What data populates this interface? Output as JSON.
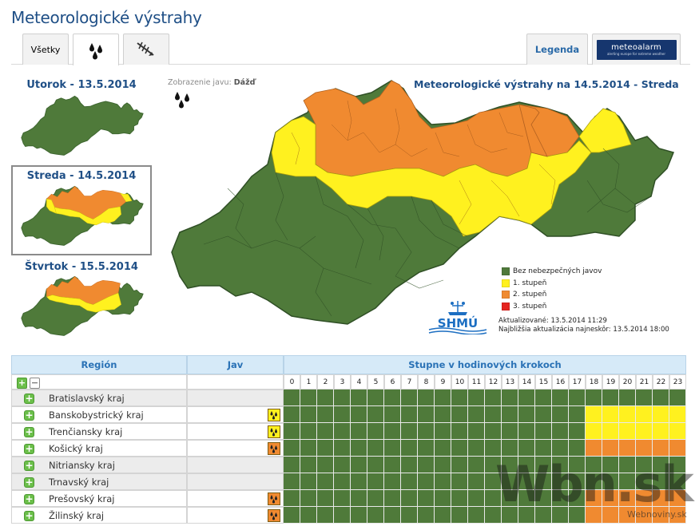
{
  "page_title": "Meteorologické výstrahy",
  "tabs": {
    "all_label": "Všetky",
    "rain_icon": "rain-drops-icon",
    "wind_icon": "wind-icon",
    "legend_label": "Legenda",
    "meteoalarm_name": "meteoalarm",
    "meteoalarm_tag": "alerting europe for extreme weather"
  },
  "days": [
    {
      "label": "Utorok - 13.5.2014"
    },
    {
      "label": "Streda - 14.5.2014"
    },
    {
      "label": "Štvrtok - 15.5.2014"
    }
  ],
  "phenomenon": {
    "prefix": "Zobrazenie javu:",
    "value": "Dážď"
  },
  "map_title": "Meteorologické výstrahy na 14.5.2014 - Streda",
  "legend": {
    "items": [
      {
        "label": "Bez nebezpečných javov",
        "color": "#4f7a3a"
      },
      {
        "label": "1. stupeň",
        "color": "#fff11f"
      },
      {
        "label": "2. stupeň",
        "color": "#f08a30"
      },
      {
        "label": "3. stupeň",
        "color": "#e52420"
      }
    ]
  },
  "updated": "Aktualizované: 13.5.2014 11:29",
  "next_update": "Najbližšia aktualizácia najneskôr: 13.5.2014 18:00",
  "logo_text": "SHMÚ",
  "table": {
    "col_region": "Región",
    "col_jav": "Jav",
    "col_steps": "Stupne v hodinových krokoch",
    "hours": [
      "0",
      "1",
      "2",
      "3",
      "4",
      "5",
      "6",
      "7",
      "8",
      "9",
      "10",
      "11",
      "12",
      "13",
      "14",
      "15",
      "16",
      "17",
      "18",
      "19",
      "20",
      "21",
      "22",
      "23"
    ],
    "rows": [
      {
        "name": "Bratislavský kraj",
        "level": 0,
        "from_hour": 24
      },
      {
        "name": "Banskobystrický kraj",
        "level": 1,
        "from_hour": 18
      },
      {
        "name": "Trenčiansky kraj",
        "level": 1,
        "from_hour": 18
      },
      {
        "name": "Košický kraj",
        "level": 2,
        "from_hour": 18
      },
      {
        "name": "Nitriansky kraj",
        "level": 0,
        "from_hour": 24
      },
      {
        "name": "Trnavský kraj",
        "level": 0,
        "from_hour": 24
      },
      {
        "name": "Prešovský kraj",
        "level": 2,
        "from_hour": 18
      },
      {
        "name": "Žilinský kraj",
        "level": 2,
        "from_hour": 18
      }
    ]
  },
  "watermark": "Wbn.sk",
  "watermark_sub": "Webnoviny.sk"
}
